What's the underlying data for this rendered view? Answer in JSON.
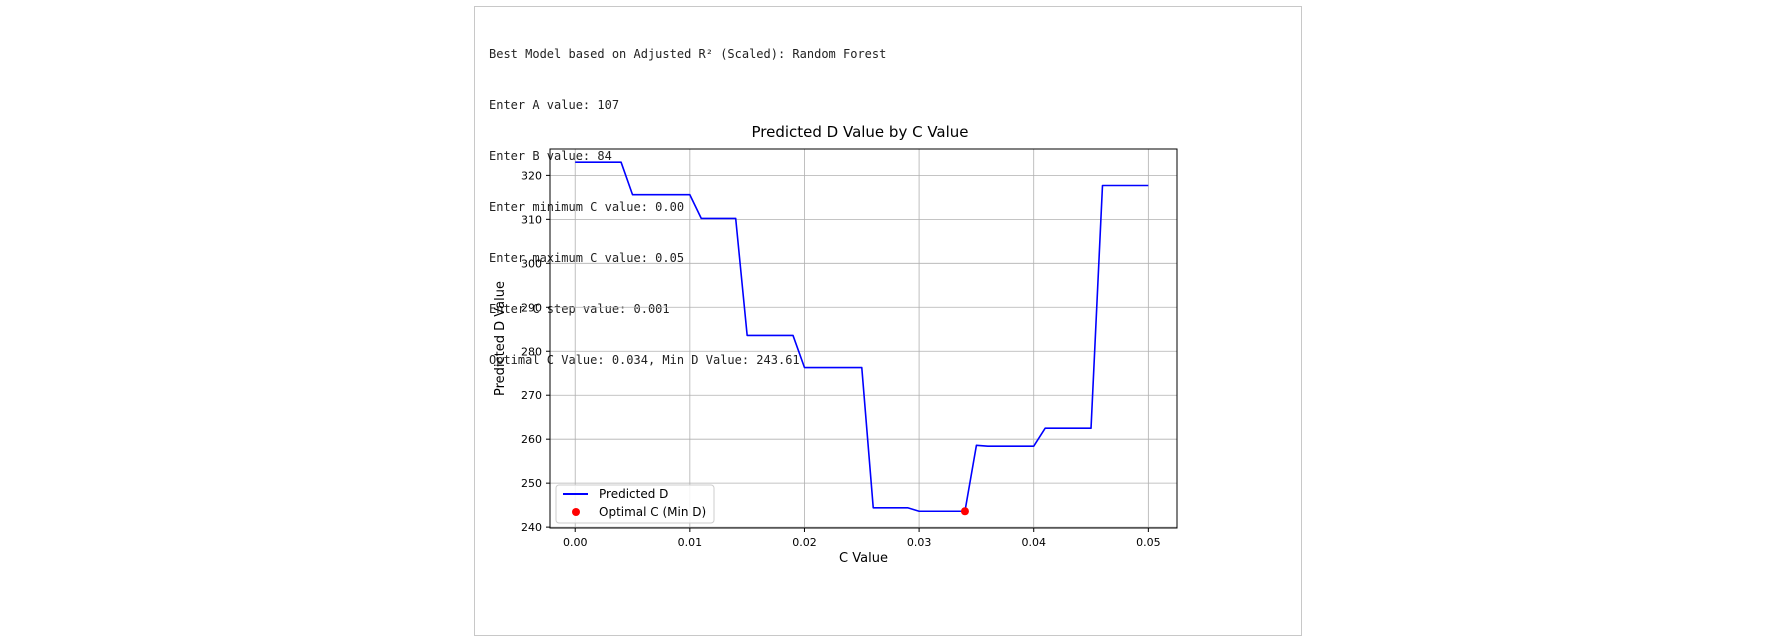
{
  "console": {
    "lines": [
      "Best Model based on Adjusted R² (Scaled): Random Forest",
      "Enter A value: 107",
      "Enter B value: 84",
      "Enter minimum C value: 0.00",
      "Enter maximum C value: 0.05",
      "Enter C step value: 0.001",
      "Optimal C Value: 0.034, Min D Value: 243.61"
    ]
  },
  "chart_data": {
    "type": "line",
    "title": "Predicted D Value by C Value",
    "xlabel": "C Value",
    "ylabel": "Predicted D Value",
    "xlim": [
      -0.0022,
      0.0525
    ],
    "ylim": [
      239.8,
      326.0
    ],
    "xticks": [
      0.0,
      0.01,
      0.02,
      0.03,
      0.04,
      0.05
    ],
    "xtick_labels": [
      "0.00",
      "0.01",
      "0.02",
      "0.03",
      "0.04",
      "0.05"
    ],
    "yticks": [
      240,
      250,
      260,
      270,
      280,
      290,
      300,
      310,
      320
    ],
    "ytick_labels": [
      "240",
      "250",
      "260",
      "270",
      "280",
      "290",
      "300",
      "310",
      "320"
    ],
    "grid": true,
    "legend_position": "lower-left",
    "series": [
      {
        "name": "Predicted D",
        "color": "#0000ff",
        "x": [
          0.0,
          0.001,
          0.002,
          0.003,
          0.004,
          0.005,
          0.006,
          0.007,
          0.008,
          0.009,
          0.01,
          0.011,
          0.012,
          0.013,
          0.014,
          0.015,
          0.016,
          0.017,
          0.018,
          0.019,
          0.02,
          0.021,
          0.022,
          0.023,
          0.024,
          0.025,
          0.026,
          0.027,
          0.028,
          0.029,
          0.03,
          0.031,
          0.032,
          0.033,
          0.034,
          0.035,
          0.036,
          0.037,
          0.038,
          0.039,
          0.04,
          0.041,
          0.042,
          0.043,
          0.044,
          0.045,
          0.046,
          0.047,
          0.048,
          0.049,
          0.05
        ],
        "y": [
          323.0,
          323.0,
          323.0,
          323.0,
          323.0,
          315.6,
          315.6,
          315.6,
          315.6,
          315.6,
          315.6,
          310.2,
          310.2,
          310.2,
          310.2,
          283.6,
          283.6,
          283.6,
          283.6,
          283.6,
          276.3,
          276.3,
          276.3,
          276.3,
          276.3,
          276.3,
          244.4,
          244.4,
          244.4,
          244.4,
          243.61,
          243.61,
          243.61,
          243.61,
          243.61,
          258.6,
          258.4,
          258.4,
          258.4,
          258.4,
          258.4,
          262.5,
          262.5,
          262.5,
          262.5,
          262.5,
          317.7,
          317.7,
          317.7,
          317.7,
          317.7
        ]
      }
    ],
    "optimal_point": {
      "name": "Optimal C (Min D)",
      "color": "#ff0000",
      "x": 0.034,
      "y": 243.61
    }
  }
}
